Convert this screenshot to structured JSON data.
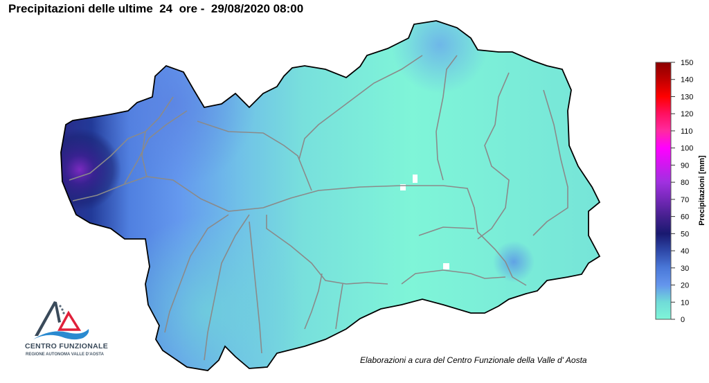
{
  "title": "Precipitazioni delle ultime  24  ore -  29/08/2020 08:00",
  "footer": "Elaborazioni a cura del Centro Funzionale della Valle d' Aosta",
  "logo": {
    "name": "CENTRO FUNZIONALE",
    "subtitle": "REGIONE AUTONOMA VALLE D'AOSTA",
    "colors": {
      "mountain": "#3a4a5a",
      "triangle": "#e0203a",
      "wave": "#2a8ad0"
    }
  },
  "legend": {
    "label": "Precipitazioni [mm]",
    "min": 0,
    "max": 150,
    "ticks": [
      0,
      10,
      20,
      30,
      40,
      50,
      60,
      70,
      80,
      90,
      100,
      110,
      120,
      130,
      140,
      150
    ],
    "color_stops": [
      {
        "value": 0,
        "color": "#7ff5d8"
      },
      {
        "value": 10,
        "color": "#70dcd8"
      },
      {
        "value": 20,
        "color": "#6495ed"
      },
      {
        "value": 30,
        "color": "#4a78d8"
      },
      {
        "value": 40,
        "color": "#2e48a8"
      },
      {
        "value": 50,
        "color": "#191970"
      },
      {
        "value": 60,
        "color": "#45208e"
      },
      {
        "value": 70,
        "color": "#7428b8"
      },
      {
        "value": 80,
        "color": "#a030e0"
      },
      {
        "value": 100,
        "color": "#ff00ff"
      },
      {
        "value": 110,
        "color": "#ff2aa0"
      },
      {
        "value": 120,
        "color": "#ff1060"
      },
      {
        "value": 130,
        "color": "#ff0000"
      },
      {
        "value": 140,
        "color": "#c00000"
      },
      {
        "value": 150,
        "color": "#8b0000"
      }
    ]
  },
  "map": {
    "region": "Valle d'Aosta",
    "river_color": "#8a8a8a",
    "border_color": "#000000"
  }
}
